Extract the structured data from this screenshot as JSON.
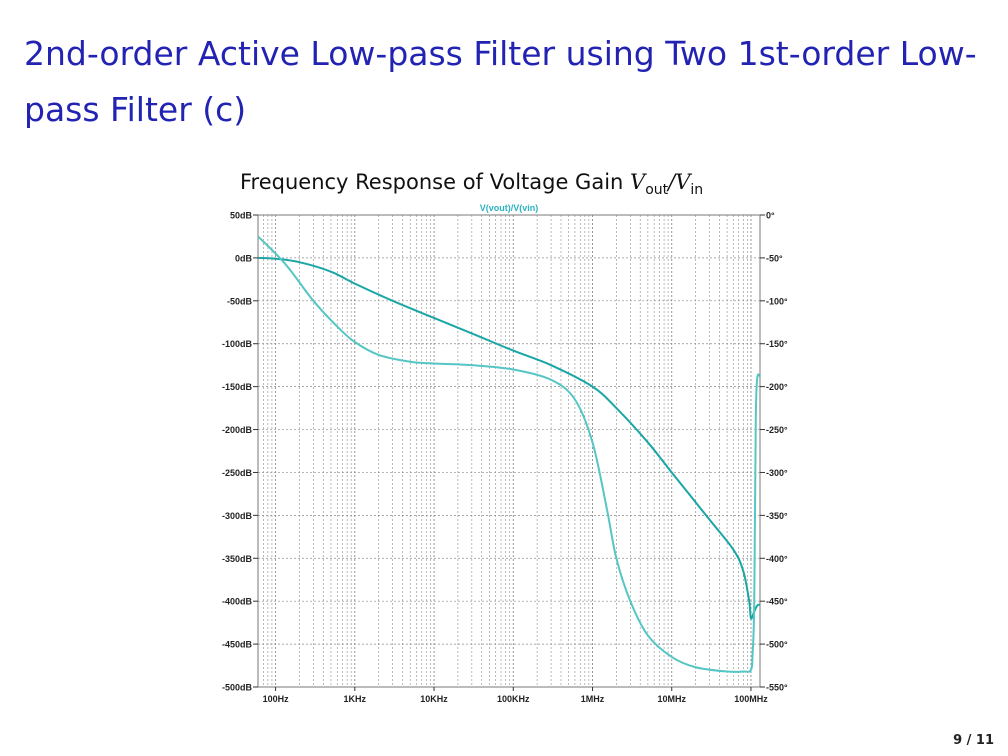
{
  "slide": {
    "title": "2nd-order Active Low-pass Filter using Two 1st-order Low-pass Filter (c)",
    "page_number": "9 / 11"
  },
  "chart_title": {
    "prefix": "Frequency Response of Voltage Gain ",
    "v1": "V",
    "sub1": "out",
    "slash": "/",
    "v2": "V",
    "sub2": "in"
  },
  "chart_data": {
    "type": "line",
    "title": "Frequency Response of Voltage Gain Vout/Vin",
    "legend_label": "V(vout)/V(vin)",
    "x_scale": "log",
    "x_range_hz": [
      60,
      130000000
    ],
    "x_ticks": [
      {
        "value": 100,
        "label": "100Hz"
      },
      {
        "value": 1000,
        "label": "1KHz"
      },
      {
        "value": 10000,
        "label": "10KHz"
      },
      {
        "value": 100000,
        "label": "100KHz"
      },
      {
        "value": 1000000,
        "label": "1MHz"
      },
      {
        "value": 10000000,
        "label": "10MHz"
      },
      {
        "value": 100000000,
        "label": "100MHz"
      }
    ],
    "y_left": {
      "range": [
        -500,
        50
      ],
      "ticks": [
        {
          "value": 50,
          "label": "50dB"
        },
        {
          "value": 0,
          "label": "0dB"
        },
        {
          "value": -50,
          "label": "-50dB"
        },
        {
          "value": -100,
          "label": "-100dB"
        },
        {
          "value": -150,
          "label": "-150dB"
        },
        {
          "value": -200,
          "label": "-200dB"
        },
        {
          "value": -250,
          "label": "-250dB"
        },
        {
          "value": -300,
          "label": "-300dB"
        },
        {
          "value": -350,
          "label": "-350dB"
        },
        {
          "value": -400,
          "label": "-400dB"
        },
        {
          "value": -450,
          "label": "-450dB"
        },
        {
          "value": -500,
          "label": "-500dB"
        }
      ]
    },
    "y_right": {
      "range": [
        -550,
        0
      ],
      "ticks": [
        {
          "value": 0,
          "label": "0°"
        },
        {
          "value": -50,
          "label": "-50°"
        },
        {
          "value": -100,
          "label": "-100°"
        },
        {
          "value": -150,
          "label": "-150°"
        },
        {
          "value": -200,
          "label": "-200°"
        },
        {
          "value": -250,
          "label": "-250°"
        },
        {
          "value": -300,
          "label": "-300°"
        },
        {
          "value": -350,
          "label": "-350°"
        },
        {
          "value": -400,
          "label": "-400°"
        },
        {
          "value": -450,
          "label": "-450°"
        },
        {
          "value": -500,
          "label": "-500°"
        },
        {
          "value": -550,
          "label": "-550°"
        }
      ]
    },
    "grid": true,
    "series": [
      {
        "axis": "left",
        "color": "#1aa6a6",
        "x": [
          60,
          100,
          200,
          500,
          1000,
          3000,
          10000,
          30000,
          100000,
          300000,
          1000000,
          2000000,
          5000000,
          10000000,
          30000000,
          60000000,
          80000000,
          95000000,
          100000000,
          110000000,
          120000000,
          130000000
        ],
        "y": [
          0,
          -1,
          -5,
          -16,
          -30,
          -50,
          -70,
          -88,
          -108,
          -125,
          -150,
          -175,
          -215,
          -250,
          -305,
          -340,
          -365,
          -400,
          -420,
          -412,
          -405,
          -404
        ]
      },
      {
        "axis": "right",
        "color": "#55c6c4",
        "x": [
          60,
          100,
          150,
          300,
          600,
          1000,
          2000,
          5000,
          10000,
          30000,
          100000,
          300000,
          600000,
          1000000,
          1500000,
          2000000,
          3000000,
          5000000,
          10000000,
          20000000,
          50000000,
          80000000,
          100000000,
          105000000,
          110000000,
          115000000,
          120000000,
          130000000
        ],
        "y": [
          -25,
          -45,
          -63,
          -100,
          -130,
          -148,
          -163,
          -171,
          -173,
          -175,
          -180,
          -192,
          -215,
          -265,
          -340,
          -400,
          -450,
          -490,
          -515,
          -527,
          -532,
          -532,
          -530,
          -510,
          -450,
          -240,
          -190,
          -188
        ]
      }
    ]
  }
}
